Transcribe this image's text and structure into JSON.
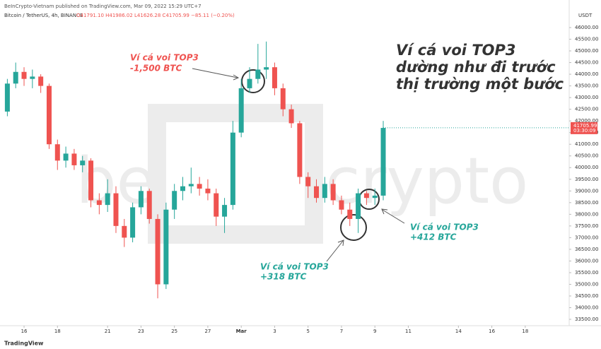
{
  "header": {
    "publisher": "BeInCrypto-Vietnam published on TradingView.com, Mar 09, 2022 15:29 UTC+7",
    "symbol": "Bitcoin / TetherUS, 4h, BINANCE",
    "ohlc": "O41791.10 H41986.02 L41626.28 C41705.99 −85.11 (−0.20%)",
    "currency": "USDT"
  },
  "footer": {
    "brand": "TradingView"
  },
  "chart_data": {
    "type": "candlestick",
    "watermark": [
      "be",
      "crypto"
    ],
    "x": [
      15,
      15.5,
      16,
      16.5,
      17,
      17.5,
      18,
      18.5,
      19,
      19.5,
      20,
      20.5,
      21,
      21.5,
      22,
      22.5,
      23,
      23.5,
      24,
      24.5,
      25,
      25.5,
      26,
      26.5,
      27,
      27.5,
      28,
      28.5,
      29,
      29.5,
      30,
      30.5,
      31,
      31.5,
      32,
      32.5,
      33,
      33.5,
      34,
      34.5,
      35,
      35.5,
      36,
      36.5,
      37,
      37.5
    ],
    "open": [
      42400,
      43600,
      44100,
      43800,
      43900,
      43500,
      41000,
      40300,
      40600,
      40100,
      40300,
      38600,
      38400,
      38900,
      37500,
      37000,
      38300,
      39000,
      37800,
      35000,
      38200,
      39000,
      39200,
      39300,
      39100,
      38900,
      37900,
      38400,
      41500,
      43400,
      43800,
      44200,
      44300,
      43400,
      42500,
      41900,
      39600,
      39200,
      38700,
      39300,
      38600,
      38200,
      37800,
      38900,
      38700,
      38800
    ],
    "high": [
      43800,
      44500,
      44300,
      44200,
      44000,
      43600,
      41200,
      40900,
      40800,
      40500,
      40400,
      38900,
      39500,
      39200,
      37800,
      38500,
      39200,
      39100,
      38000,
      38500,
      39300,
      39600,
      40000,
      39600,
      39500,
      39100,
      38700,
      42000,
      43800,
      44300,
      45300,
      45400,
      44500,
      43600,
      42700,
      42000,
      39800,
      39500,
      39600,
      39500,
      38800,
      38500,
      39100,
      39000,
      39100,
      42000
    ],
    "low": [
      42200,
      43400,
      43500,
      43400,
      43200,
      40800,
      39900,
      40000,
      39900,
      39800,
      38300,
      38000,
      38100,
      37200,
      36600,
      36800,
      38000,
      37600,
      34400,
      34800,
      37800,
      38600,
      38900,
      38800,
      38600,
      37500,
      37200,
      38200,
      41300,
      43200,
      43600,
      43800,
      43100,
      42200,
      41700,
      39300,
      38700,
      38500,
      38500,
      38400,
      38000,
      37500,
      37200,
      38400,
      38400,
      38600
    ],
    "close": [
      43600,
      44100,
      43800,
      43900,
      43500,
      41000,
      40300,
      40600,
      40100,
      40300,
      38600,
      38400,
      38900,
      37500,
      37000,
      38300,
      39000,
      37800,
      35000,
      38200,
      39000,
      39200,
      39300,
      39100,
      38900,
      37900,
      38400,
      41500,
      43400,
      43800,
      44200,
      44300,
      43400,
      42500,
      41900,
      39600,
      39200,
      38700,
      39300,
      38600,
      38200,
      37800,
      38900,
      38700,
      38800,
      41700
    ],
    "up_color": "#26a69a",
    "down_color": "#ef5350",
    "xlim": [
      14.56,
      48.63
    ],
    "xticks": [
      16,
      18,
      21,
      23,
      25,
      27,
      {
        "value": 29,
        "label": "Mar"
      },
      {
        "value": 31,
        "label": "3"
      },
      {
        "value": 33,
        "label": "5"
      },
      {
        "value": 35,
        "label": "7"
      },
      {
        "value": 37,
        "label": "9"
      },
      {
        "value": 39,
        "label": "11"
      },
      {
        "value": 42,
        "label": "14"
      },
      {
        "value": 44,
        "label": "16"
      },
      {
        "value": 46,
        "label": "18"
      }
    ],
    "ylim": [
      33228,
      46817
    ],
    "yticks": [
      {
        "value": 33500,
        "label": "33500.00"
      },
      {
        "value": 34000,
        "label": "34000.00"
      },
      {
        "value": 34500,
        "label": "34500.00"
      },
      {
        "value": 35000,
        "label": "35000.00"
      },
      {
        "value": 35500,
        "label": "35500.00"
      },
      {
        "value": 36000,
        "label": "36000.00"
      },
      {
        "value": 36500,
        "label": "36500.00"
      },
      {
        "value": 37000,
        "label": "37000.00"
      },
      {
        "value": 37500,
        "label": "37500.00"
      },
      {
        "value": 38000,
        "label": "38000.00"
      },
      {
        "value": 38500,
        "label": "38500.00"
      },
      {
        "value": 39000,
        "label": "39000.00"
      },
      {
        "value": 39500,
        "label": "39500.00"
      },
      {
        "value": 40000,
        "label": "40000.00"
      },
      {
        "value": 40500,
        "label": "40500.00"
      },
      {
        "value": 41000,
        "label": "41000.00"
      },
      {
        "value": 41500,
        "label": "41500.00"
      },
      {
        "value": 42000,
        "label": "42000.00"
      },
      {
        "value": 42500,
        "label": "42500.00"
      },
      {
        "value": 43000,
        "label": "43000.00"
      },
      {
        "value": 43500,
        "label": "43500.00"
      },
      {
        "value": 44000,
        "label": "44000.00"
      },
      {
        "value": 44500,
        "label": "44500.00"
      },
      {
        "value": 45000,
        "label": "45000.00"
      },
      {
        "value": 45500,
        "label": "45500.00"
      },
      {
        "value": 46000,
        "label": "46000.00"
      }
    ],
    "last_price": {
      "value": 41705.99,
      "label": "41705.99"
    },
    "countdown": "03:30:09",
    "annotations": {
      "sell_line1": "Ví cá voi TOP3",
      "sell_line2": "-1,500 BTC",
      "title_line1": "Ví cá voi TOP3",
      "title_line2": "dường như đi trước",
      "title_line3": "thị trường một bước",
      "buy1_line1": "Ví cá voi TOP3",
      "buy1_line2": "+318 BTC",
      "buy2_line1": "Ví cá voi TOP3",
      "buy2_line2": "+412 BTC"
    }
  }
}
